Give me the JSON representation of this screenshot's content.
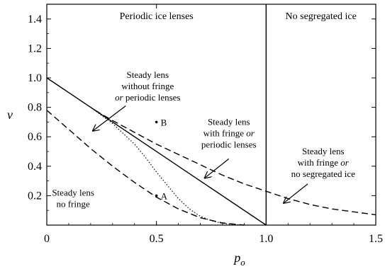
{
  "chart_data": {
    "type": "line",
    "xlabel": "p",
    "xlabel_sub": "o",
    "ylabel": "v",
    "xlim": [
      0,
      1.5
    ],
    "ylim": [
      0,
      1.5
    ],
    "x_ticks": [
      {
        "value": 0,
        "label": "0"
      },
      {
        "value": 0.5,
        "label": "0.5"
      },
      {
        "value": 1.0,
        "label": "1.0"
      },
      {
        "value": 1.5,
        "label": "1.5"
      }
    ],
    "y_ticks": [
      {
        "value": 0.2,
        "label": "0.2"
      },
      {
        "value": 0.4,
        "label": "0.4"
      },
      {
        "value": 0.6,
        "label": "0.6"
      },
      {
        "value": 0.8,
        "label": "0.8"
      },
      {
        "value": 1.0,
        "label": "1.0"
      },
      {
        "value": 1.2,
        "label": "1.2"
      },
      {
        "value": 1.4,
        "label": "1.4"
      }
    ],
    "series": [
      {
        "style": "solid",
        "x": [
          0,
          1.0
        ],
        "y": [
          1.0,
          0
        ]
      },
      {
        "style": "solid",
        "x": [
          1.0,
          1.0
        ],
        "y": [
          0,
          1.5
        ]
      },
      {
        "style": "dashed",
        "x": [
          0,
          0.1,
          0.2,
          0.3,
          0.4,
          0.5,
          0.6,
          0.7,
          0.8,
          0.9
        ],
        "y": [
          0.78,
          0.65,
          0.52,
          0.4,
          0.29,
          0.19,
          0.11,
          0.05,
          0.015,
          0
        ]
      },
      {
        "style": "dashed",
        "x": [
          0.22,
          0.3,
          0.4,
          0.5,
          0.6,
          0.7,
          0.8,
          0.9,
          1.0,
          1.1,
          1.2,
          1.3,
          1.4,
          1.5
        ],
        "y": [
          0.78,
          0.71,
          0.63,
          0.55,
          0.48,
          0.41,
          0.34,
          0.28,
          0.23,
          0.18,
          0.14,
          0.11,
          0.09,
          0.07
        ]
      },
      {
        "style": "dotted",
        "x": [
          0,
          0.1,
          0.2,
          0.3,
          0.4,
          0.45,
          0.5,
          0.55,
          0.6,
          0.65,
          0.7,
          0.75,
          0.8,
          0.85,
          0.9
        ],
        "y": [
          1.0,
          0.9,
          0.8,
          0.69,
          0.55,
          0.46,
          0.36,
          0.27,
          0.18,
          0.11,
          0.06,
          0.03,
          0.012,
          0.004,
          0
        ]
      }
    ],
    "points": [
      {
        "name": "A",
        "x": 0.5,
        "y": 0.2
      },
      {
        "name": "B",
        "x": 0.5,
        "y": 0.7
      }
    ],
    "region_labels": [
      {
        "text": "Periodic ice lenses",
        "x": 0.5,
        "y": 1.4
      },
      {
        "text": "No segregated ice",
        "x": 1.25,
        "y": 1.4
      }
    ],
    "annotations": [
      {
        "lines": [
          {
            "text": "Steady lens"
          },
          {
            "text": "without fringe"
          },
          {
            "text": "periodic lenses",
            "prefix_italic": "or"
          }
        ],
        "x": 0.46,
        "y": 1.0,
        "arrow": {
          "from": [
            0.36,
            0.81
          ],
          "to": [
            0.21,
            0.64
          ]
        }
      },
      {
        "lines": [
          {
            "text": "Steady lens"
          },
          {
            "text": "with fringe",
            "suffix_italic": "or"
          },
          {
            "text": "periodic lenses"
          }
        ],
        "x": 0.83,
        "y": 0.68,
        "arrow": {
          "from": [
            0.83,
            0.45
          ],
          "to": [
            0.72,
            0.32
          ]
        }
      },
      {
        "lines": [
          {
            "text": "Steady lens"
          },
          {
            "text": "with fringe",
            "suffix_italic": "or"
          },
          {
            "text": "no segregated ice"
          }
        ],
        "x": 1.26,
        "y": 0.48,
        "arrow": {
          "from": [
            1.19,
            0.28
          ],
          "to": [
            1.08,
            0.15
          ]
        }
      },
      {
        "lines": [
          {
            "text": "Steady lens"
          },
          {
            "text": "no fringe"
          }
        ],
        "x": 0.12,
        "y": 0.2,
        "arrow": null
      }
    ]
  }
}
